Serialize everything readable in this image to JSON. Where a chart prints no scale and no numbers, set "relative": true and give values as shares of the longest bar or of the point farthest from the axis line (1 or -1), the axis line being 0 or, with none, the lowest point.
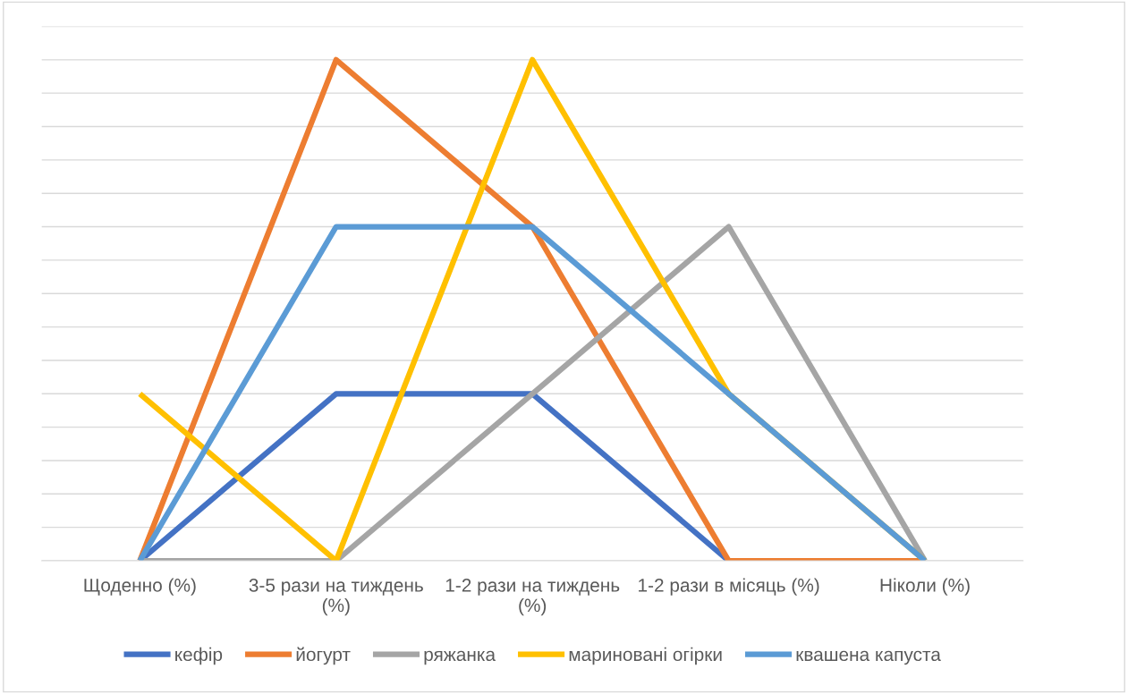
{
  "chart_data": {
    "type": "line",
    "relative": true,
    "grid": "y",
    "legend": "bottom",
    "marker": "none",
    "line_style": "solid",
    "categories": [
      "Щоденно (%)",
      "3-5 рази на тиждень (%)",
      "1-2 рази на тиждень (%)",
      "1-2 рази в місяць (%)",
      "Ніколи (%)"
    ],
    "series": [
      {
        "name": "кефір",
        "color": "#4472c4",
        "values": [
          0,
          0.3333,
          0.3333,
          0,
          0
        ]
      },
      {
        "name": "йогурт",
        "color": "#ed7d31",
        "values": [
          0,
          1,
          0.6667,
          0,
          0
        ]
      },
      {
        "name": "ряжанка",
        "color": "#a5a5a5",
        "values": [
          0,
          0,
          0.3333,
          0.6667,
          0
        ]
      },
      {
        "name": "мариновані огірки",
        "color": "#ffc000",
        "values": [
          0.3333,
          0,
          1,
          0.3333,
          0
        ]
      },
      {
        "name": "квашена капуста",
        "color": "#5b9bd5",
        "values": [
          0,
          0.6667,
          0.6667,
          0.3333,
          0
        ]
      }
    ]
  }
}
